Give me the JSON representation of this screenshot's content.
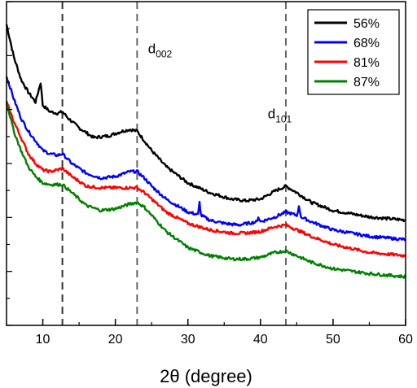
{
  "chart_data": {
    "type": "line",
    "title": "",
    "xlabel": "2θ (degree)",
    "ylabel": "",
    "xlim": [
      5,
      60
    ],
    "ylim": [
      0,
      100
    ],
    "y_tick_labels_shown": false,
    "x_ticks": [
      10,
      20,
      30,
      40,
      50,
      60
    ],
    "x_tick_labels": [
      "10",
      "20",
      "30",
      "40",
      "50",
      "60"
    ],
    "legend_position": "top-right",
    "reference_lines": [
      12.7,
      23.0,
      43.5
    ],
    "annotations": [
      {
        "base": "d",
        "sub": "002",
        "x": 24.5,
        "y": 84
      },
      {
        "base": "d",
        "sub": "101",
        "x": 41.0,
        "y": 64
      }
    ],
    "series": [
      {
        "name": "56%",
        "color": "#000000",
        "x": [
          5,
          6,
          7,
          8,
          9,
          9.7,
          10,
          11,
          12,
          12.7,
          13.5,
          15,
          17,
          19,
          21,
          22,
          23,
          24,
          25,
          27,
          30,
          33,
          36,
          38,
          40,
          42,
          43.5,
          45,
          47,
          50,
          55,
          60
        ],
        "y": [
          93,
          83,
          76,
          72,
          69,
          75,
          68,
          66,
          65.5,
          66,
          64,
          61,
          58,
          58.5,
          60,
          60.5,
          60,
          57,
          54,
          49,
          44,
          41,
          39,
          38.5,
          39,
          41.5,
          43,
          41,
          38,
          35.5,
          33.5,
          32.5
        ],
        "spikes": []
      },
      {
        "name": "68%",
        "color": "#0000ff",
        "x": [
          5,
          6,
          7,
          8,
          9,
          10,
          11,
          12,
          12.7,
          14,
          16,
          18,
          20,
          22,
          23,
          24,
          25,
          27,
          30,
          31.4,
          31.6,
          31.8,
          33,
          35,
          37,
          39.5,
          39.7,
          40,
          42,
          43.5,
          45,
          45.3,
          45.6,
          47,
          50,
          55,
          60
        ],
        "y": [
          77,
          70,
          64,
          60,
          57,
          54,
          53,
          52.5,
          53,
          50,
          47,
          45.5,
          46,
          47.5,
          47.5,
          45.5,
          43,
          39,
          35,
          34.2,
          38,
          34,
          32.5,
          31.5,
          31,
          32,
          33.5,
          32,
          33.5,
          35,
          34,
          36.5,
          33.5,
          32,
          29.5,
          27.5,
          26.5
        ],
        "spikes": []
      },
      {
        "name": "81%",
        "color": "#ff0000",
        "x": [
          5,
          6,
          7,
          8,
          9,
          10,
          11,
          12,
          12.7,
          14,
          16,
          18,
          20,
          22,
          23,
          24,
          25,
          27,
          30,
          33,
          36,
          38,
          40,
          42,
          43.5,
          45,
          47,
          50,
          55,
          60
        ],
        "y": [
          69,
          63,
          58,
          53,
          50,
          48,
          47.5,
          48,
          48.5,
          46,
          43,
          42.5,
          42.5,
          42.5,
          42.5,
          41,
          39,
          35,
          31.5,
          29.5,
          28.5,
          28.5,
          29,
          30.5,
          31,
          29.5,
          27.5,
          25,
          22.5,
          21.5
        ],
        "spikes": []
      },
      {
        "name": "87%",
        "color": "#008000",
        "x": [
          5,
          6,
          7,
          8,
          9,
          10,
          11,
          12,
          12.7,
          14,
          16,
          18,
          20,
          22,
          23,
          24,
          25,
          27,
          30,
          33,
          36,
          38,
          40,
          42,
          43.5,
          45,
          47,
          50,
          55,
          60
        ],
        "y": [
          69,
          60,
          54,
          49,
          46,
          44,
          43.5,
          43.5,
          43.5,
          41,
          37,
          35.5,
          36,
          37.5,
          38,
          36.5,
          34,
          29,
          24,
          21.5,
          20.5,
          20.5,
          21,
          22.5,
          23,
          21.5,
          19.5,
          17.5,
          16,
          15
        ],
        "spikes": []
      }
    ]
  }
}
